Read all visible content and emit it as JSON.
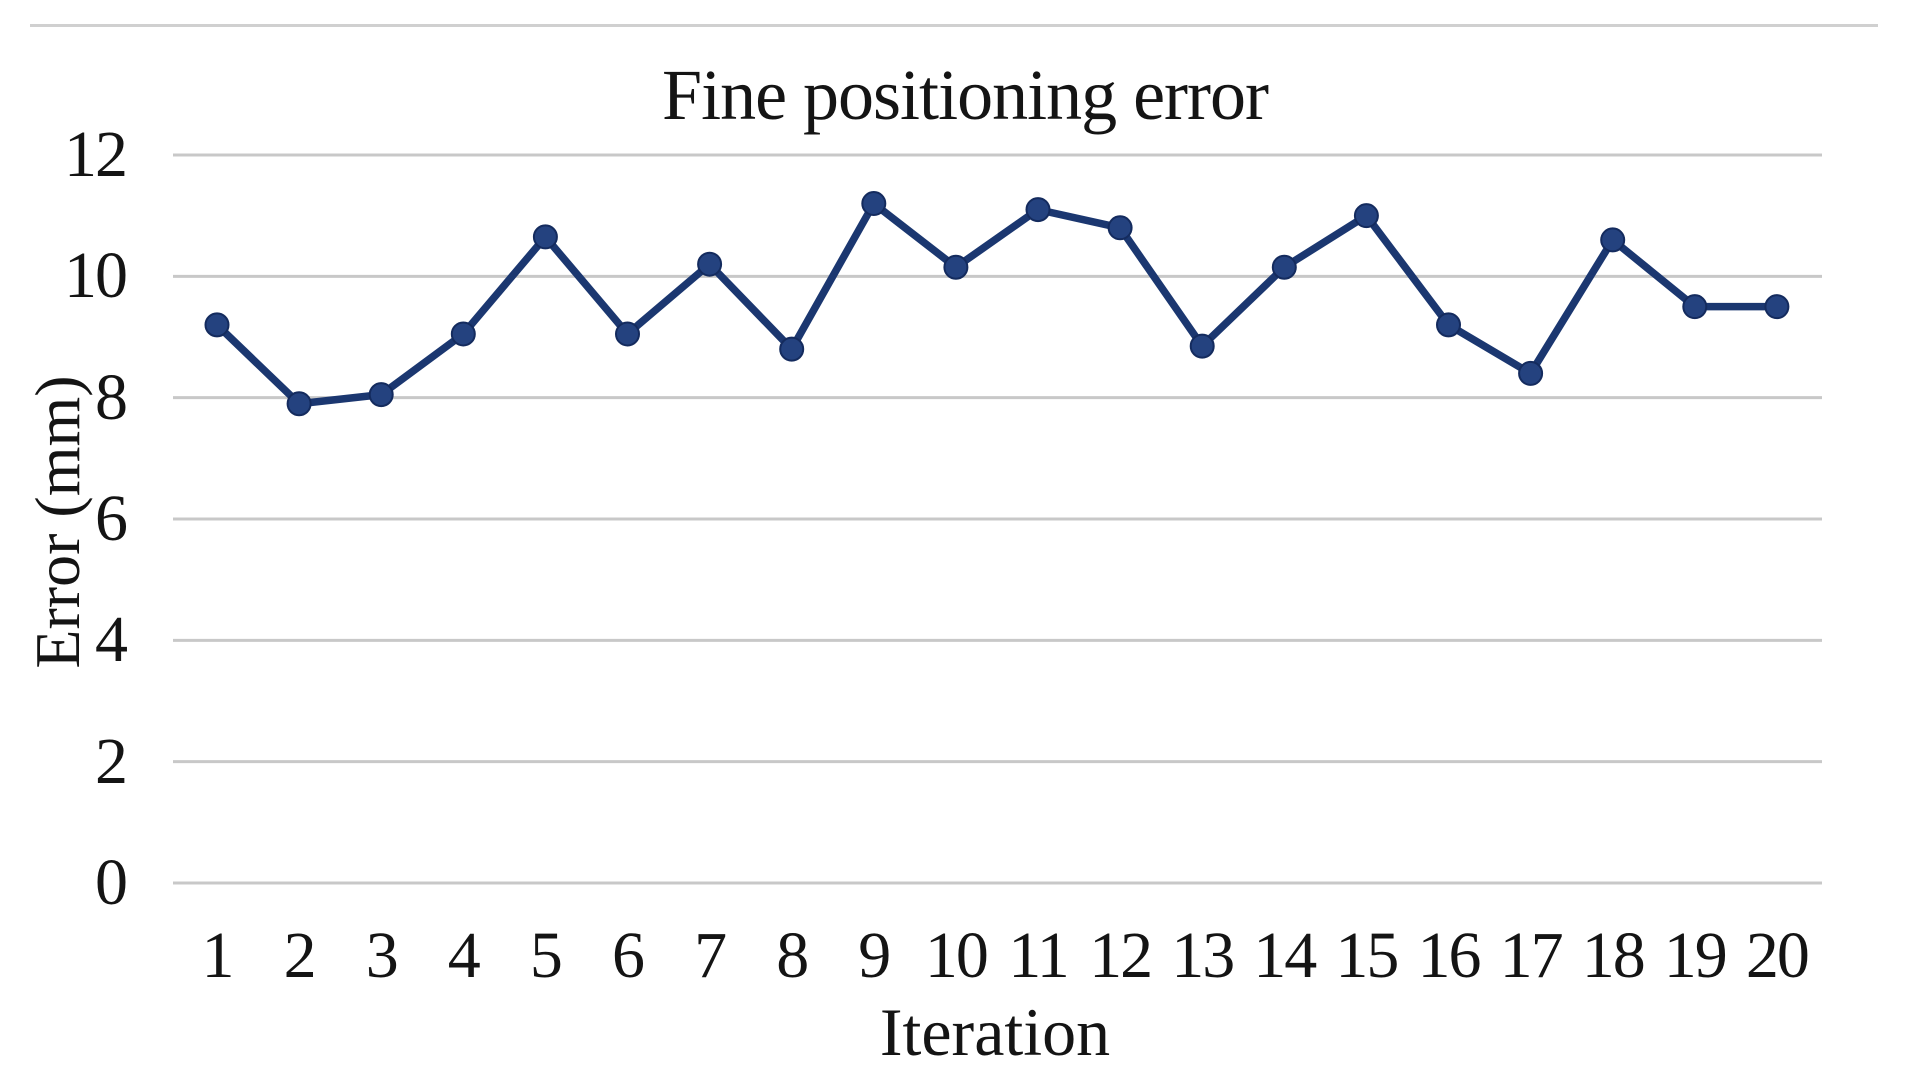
{
  "title": "Fine positioning error",
  "colors": {
    "background": "#ffffff",
    "line": "#1b3770",
    "marker_fill": "#24427f",
    "marker_edge": "#142b5e",
    "gridline": "#c8c8c8",
    "top_border": "#d0d0d0",
    "text": "#141414"
  },
  "chart_data": {
    "type": "line",
    "title": "Fine positioning error",
    "xlabel": "Iteration",
    "ylabel": "Error (mm)",
    "x": [
      1,
      2,
      3,
      4,
      5,
      6,
      7,
      8,
      9,
      10,
      11,
      12,
      13,
      14,
      15,
      16,
      17,
      18,
      19,
      20
    ],
    "values": [
      9.2,
      7.9,
      8.05,
      9.05,
      10.65,
      9.05,
      10.2,
      8.8,
      11.2,
      10.15,
      11.1,
      10.8,
      8.85,
      10.15,
      11.0,
      9.2,
      8.4,
      10.6,
      9.5,
      9.5
    ],
    "series_name": "Fine positioning error",
    "ylim": [
      0,
      12
    ],
    "yticks": [
      0,
      2,
      4,
      6,
      8,
      10,
      12
    ],
    "xticks": [
      1,
      2,
      3,
      4,
      5,
      6,
      7,
      8,
      9,
      10,
      11,
      12,
      13,
      14,
      15,
      16,
      17,
      18,
      19,
      20
    ],
    "grid": "horizontal",
    "legend": "none",
    "markers": "circle"
  }
}
